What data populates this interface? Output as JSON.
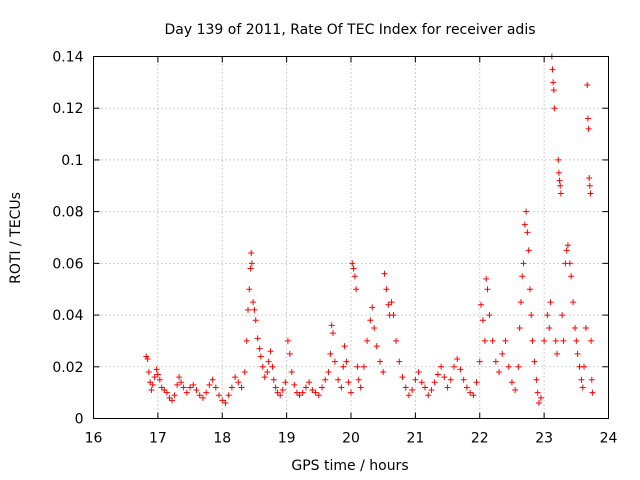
{
  "chart_data": {
    "type": "scatter",
    "title": "Day 139 of 2011, Rate Of TEC Index for receiver adis",
    "xlabel": "GPS time / hours",
    "ylabel": "ROTI / TECUs",
    "xlim": [
      16,
      24
    ],
    "ylim": [
      0,
      0.14
    ],
    "xticks": [
      16,
      17,
      18,
      19,
      20,
      21,
      22,
      23,
      24
    ],
    "yticks": [
      0,
      0.02,
      0.04,
      0.06,
      0.08,
      0.1,
      0.12,
      0.14
    ],
    "xtick_labels": [
      "16",
      "17",
      "18",
      "19",
      "20",
      "21",
      "22",
      "23",
      "24"
    ],
    "ytick_labels": [
      "0",
      "0.02",
      "0.04",
      "0.06",
      "0.08",
      "0.1",
      "0.12",
      "0.14"
    ],
    "grid": true,
    "marker": "+",
    "color": "#ff0000",
    "series": [
      {
        "name": "adis",
        "points": [
          [
            16.82,
            0.024
          ],
          [
            16.84,
            0.023
          ],
          [
            16.86,
            0.018
          ],
          [
            16.88,
            0.014
          ],
          [
            16.9,
            0.011
          ],
          [
            16.92,
            0.013
          ],
          [
            16.95,
            0.016
          ],
          [
            16.98,
            0.019
          ],
          [
            17.0,
            0.017
          ],
          [
            17.03,
            0.015
          ],
          [
            17.06,
            0.012
          ],
          [
            17.1,
            0.011
          ],
          [
            17.14,
            0.01
          ],
          [
            17.18,
            0.008
          ],
          [
            17.22,
            0.007
          ],
          [
            17.26,
            0.009
          ],
          [
            17.3,
            0.013
          ],
          [
            17.33,
            0.016
          ],
          [
            17.36,
            0.014
          ],
          [
            17.4,
            0.012
          ],
          [
            17.45,
            0.01
          ],
          [
            17.5,
            0.012
          ],
          [
            17.55,
            0.013
          ],
          [
            17.6,
            0.011
          ],
          [
            17.65,
            0.009
          ],
          [
            17.7,
            0.008
          ],
          [
            17.75,
            0.01
          ],
          [
            17.8,
            0.013
          ],
          [
            17.85,
            0.015
          ],
          [
            17.9,
            0.012
          ],
          [
            17.95,
            0.009
          ],
          [
            18.0,
            0.007
          ],
          [
            18.05,
            0.006
          ],
          [
            18.1,
            0.009
          ],
          [
            18.15,
            0.012
          ],
          [
            18.2,
            0.016
          ],
          [
            18.25,
            0.014
          ],
          [
            18.3,
            0.012
          ],
          [
            18.35,
            0.018
          ],
          [
            18.38,
            0.03
          ],
          [
            18.4,
            0.042
          ],
          [
            18.42,
            0.05
          ],
          [
            18.44,
            0.058
          ],
          [
            18.45,
            0.064
          ],
          [
            18.46,
            0.06
          ],
          [
            18.48,
            0.045
          ],
          [
            18.5,
            0.042
          ],
          [
            18.52,
            0.038
          ],
          [
            18.55,
            0.031
          ],
          [
            18.58,
            0.027
          ],
          [
            18.6,
            0.024
          ],
          [
            18.63,
            0.02
          ],
          [
            18.66,
            0.016
          ],
          [
            18.7,
            0.018
          ],
          [
            18.72,
            0.022
          ],
          [
            18.75,
            0.026
          ],
          [
            18.78,
            0.02
          ],
          [
            18.8,
            0.015
          ],
          [
            18.83,
            0.012
          ],
          [
            18.86,
            0.01
          ],
          [
            18.9,
            0.009
          ],
          [
            18.94,
            0.011
          ],
          [
            18.98,
            0.014
          ],
          [
            19.02,
            0.03
          ],
          [
            19.05,
            0.025
          ],
          [
            19.08,
            0.018
          ],
          [
            19.12,
            0.013
          ],
          [
            19.16,
            0.01
          ],
          [
            19.2,
            0.009
          ],
          [
            19.25,
            0.01
          ],
          [
            19.3,
            0.012
          ],
          [
            19.35,
            0.014
          ],
          [
            19.4,
            0.011
          ],
          [
            19.45,
            0.01
          ],
          [
            19.5,
            0.009
          ],
          [
            19.55,
            0.012
          ],
          [
            19.6,
            0.015
          ],
          [
            19.65,
            0.018
          ],
          [
            19.68,
            0.025
          ],
          [
            19.7,
            0.036
          ],
          [
            19.72,
            0.033
          ],
          [
            19.75,
            0.022
          ],
          [
            19.8,
            0.015
          ],
          [
            19.85,
            0.012
          ],
          [
            19.88,
            0.02
          ],
          [
            19.9,
            0.028
          ],
          [
            19.93,
            0.022
          ],
          [
            19.96,
            0.014
          ],
          [
            20.0,
            0.01
          ],
          [
            20.02,
            0.06
          ],
          [
            20.04,
            0.058
          ],
          [
            20.06,
            0.055
          ],
          [
            20.08,
            0.05
          ],
          [
            20.1,
            0.02
          ],
          [
            20.12,
            0.015
          ],
          [
            20.15,
            0.012
          ],
          [
            20.2,
            0.02
          ],
          [
            20.25,
            0.03
          ],
          [
            20.3,
            0.038
          ],
          [
            20.33,
            0.043
          ],
          [
            20.36,
            0.035
          ],
          [
            20.4,
            0.028
          ],
          [
            20.45,
            0.022
          ],
          [
            20.5,
            0.018
          ],
          [
            20.52,
            0.056
          ],
          [
            20.55,
            0.05
          ],
          [
            20.58,
            0.044
          ],
          [
            20.6,
            0.04
          ],
          [
            20.63,
            0.045
          ],
          [
            20.66,
            0.04
          ],
          [
            20.7,
            0.03
          ],
          [
            20.75,
            0.022
          ],
          [
            20.8,
            0.016
          ],
          [
            20.85,
            0.012
          ],
          [
            20.9,
            0.009
          ],
          [
            20.95,
            0.011
          ],
          [
            21.0,
            0.015
          ],
          [
            21.05,
            0.018
          ],
          [
            21.1,
            0.014
          ],
          [
            21.15,
            0.012
          ],
          [
            21.2,
            0.009
          ],
          [
            21.25,
            0.011
          ],
          [
            21.3,
            0.014
          ],
          [
            21.35,
            0.017
          ],
          [
            21.4,
            0.02
          ],
          [
            21.45,
            0.016
          ],
          [
            21.5,
            0.012
          ],
          [
            21.55,
            0.015
          ],
          [
            21.6,
            0.02
          ],
          [
            21.65,
            0.023
          ],
          [
            21.7,
            0.019
          ],
          [
            21.75,
            0.015
          ],
          [
            21.8,
            0.012
          ],
          [
            21.85,
            0.01
          ],
          [
            21.9,
            0.009
          ],
          [
            21.95,
            0.014
          ],
          [
            22.0,
            0.022
          ],
          [
            22.02,
            0.044
          ],
          [
            22.05,
            0.038
          ],
          [
            22.08,
            0.03
          ],
          [
            22.1,
            0.054
          ],
          [
            22.12,
            0.05
          ],
          [
            22.15,
            0.04
          ],
          [
            22.2,
            0.03
          ],
          [
            22.25,
            0.022
          ],
          [
            22.3,
            0.018
          ],
          [
            22.35,
            0.025
          ],
          [
            22.4,
            0.03
          ],
          [
            22.45,
            0.02
          ],
          [
            22.5,
            0.014
          ],
          [
            22.55,
            0.011
          ],
          [
            22.6,
            0.02
          ],
          [
            22.62,
            0.035
          ],
          [
            22.64,
            0.045
          ],
          [
            22.66,
            0.055
          ],
          [
            22.68,
            0.06
          ],
          [
            22.7,
            0.075
          ],
          [
            22.72,
            0.08
          ],
          [
            22.74,
            0.072
          ],
          [
            22.76,
            0.065
          ],
          [
            22.78,
            0.05
          ],
          [
            22.8,
            0.04
          ],
          [
            22.82,
            0.03
          ],
          [
            22.85,
            0.022
          ],
          [
            22.88,
            0.015
          ],
          [
            22.9,
            0.01
          ],
          [
            22.92,
            0.006
          ],
          [
            22.95,
            0.008
          ],
          [
            23.0,
            0.03
          ],
          [
            23.05,
            0.04
          ],
          [
            23.08,
            0.035
          ],
          [
            23.1,
            0.045
          ],
          [
            23.12,
            0.14
          ],
          [
            23.13,
            0.135
          ],
          [
            23.14,
            0.13
          ],
          [
            23.15,
            0.127
          ],
          [
            23.16,
            0.12
          ],
          [
            23.18,
            0.03
          ],
          [
            23.2,
            0.025
          ],
          [
            23.22,
            0.1
          ],
          [
            23.23,
            0.095
          ],
          [
            23.24,
            0.092
          ],
          [
            23.25,
            0.09
          ],
          [
            23.26,
            0.087
          ],
          [
            23.28,
            0.04
          ],
          [
            23.3,
            0.03
          ],
          [
            23.33,
            0.06
          ],
          [
            23.35,
            0.065
          ],
          [
            23.37,
            0.067
          ],
          [
            23.4,
            0.06
          ],
          [
            23.42,
            0.055
          ],
          [
            23.45,
            0.045
          ],
          [
            23.48,
            0.035
          ],
          [
            23.5,
            0.03
          ],
          [
            23.52,
            0.025
          ],
          [
            23.55,
            0.02
          ],
          [
            23.58,
            0.015
          ],
          [
            23.6,
            0.012
          ],
          [
            23.62,
            0.02
          ],
          [
            23.65,
            0.035
          ],
          [
            23.67,
            0.129
          ],
          [
            23.68,
            0.116
          ],
          [
            23.69,
            0.112
          ],
          [
            23.7,
            0.093
          ],
          [
            23.71,
            0.09
          ],
          [
            23.72,
            0.087
          ],
          [
            23.73,
            0.03
          ],
          [
            23.74,
            0.015
          ],
          [
            23.75,
            0.01
          ]
        ]
      }
    ]
  }
}
